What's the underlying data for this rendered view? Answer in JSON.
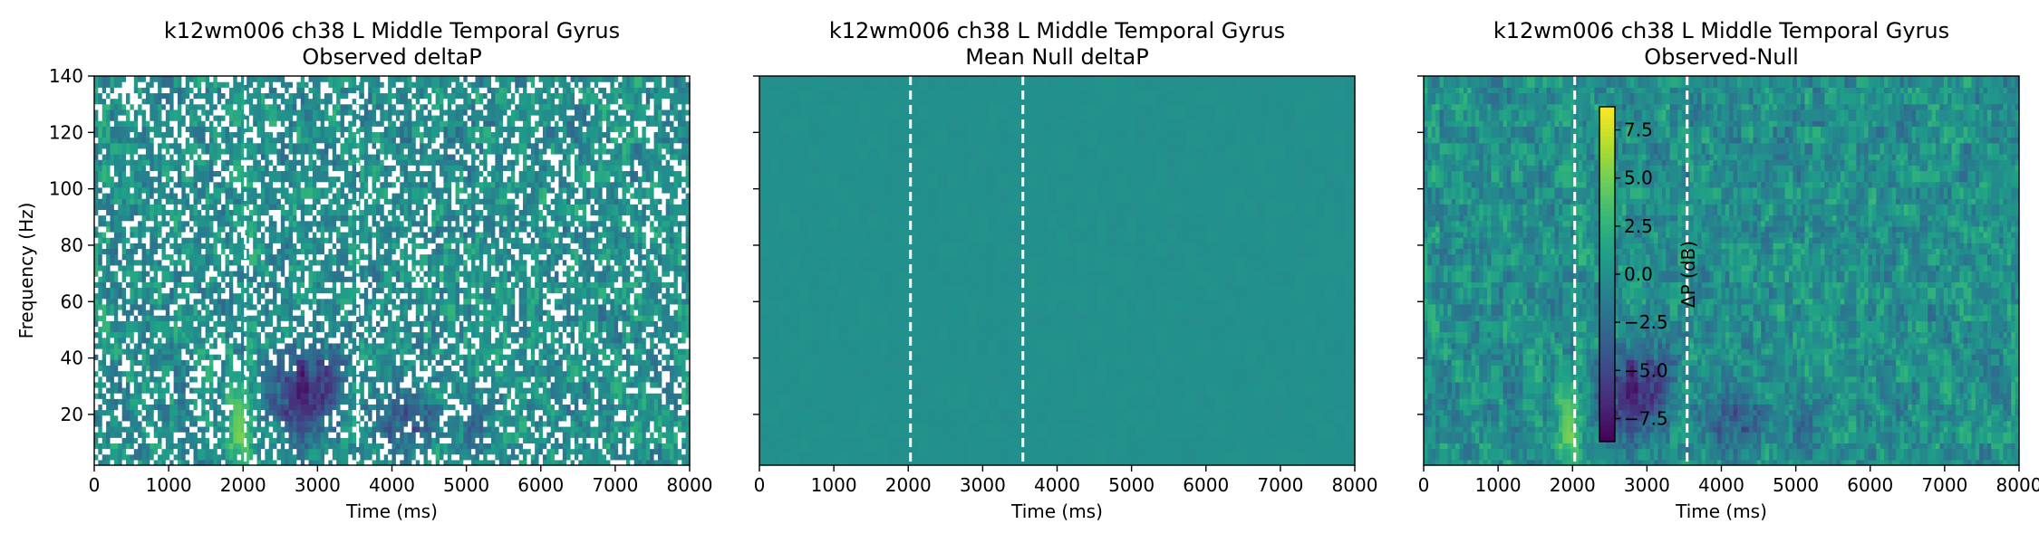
{
  "chart_data": [
    {
      "type": "heatmap",
      "title": "k12wm006 ch38 L Middle Temporal Gyrus",
      "subtitle": "Observed deltaP",
      "xlabel": "Time (ms)",
      "ylabel": "Frequency (Hz)",
      "xlim": [
        0,
        8000
      ],
      "ylim": [
        2,
        140
      ],
      "xticks": [
        0,
        1000,
        2000,
        3000,
        4000,
        5000,
        6000,
        7000,
        8000
      ],
      "yticks": [
        20,
        40,
        60,
        80,
        100,
        120,
        140
      ],
      "event_lines_ms": [
        2030,
        3540
      ],
      "colormap": "viridis",
      "masked_nonsignificant": true
    },
    {
      "type": "heatmap",
      "title": "k12wm006 ch38 L Middle Temporal Gyrus",
      "subtitle": "Mean Null deltaP",
      "xlabel": "Time (ms)",
      "ylabel": "",
      "xlim": [
        0,
        8000
      ],
      "ylim": [
        2,
        140
      ],
      "xticks": [
        0,
        1000,
        2000,
        3000,
        4000,
        5000,
        6000,
        7000,
        8000
      ],
      "yticks": [
        20,
        40,
        60,
        80,
        100,
        120,
        140
      ],
      "event_lines_ms": [
        2030,
        3540
      ],
      "colormap": "viridis",
      "uniform_value_db": 0.0
    },
    {
      "type": "heatmap",
      "title": "k12wm006 ch38 L Middle Temporal Gyrus",
      "subtitle": "Observed-Null",
      "xlabel": "Time (ms)",
      "ylabel": "",
      "xlim": [
        0,
        8000
      ],
      "ylim": [
        2,
        140
      ],
      "xticks": [
        0,
        1000,
        2000,
        3000,
        4000,
        5000,
        6000,
        7000,
        8000
      ],
      "yticks": [
        20,
        40,
        60,
        80,
        100,
        120,
        140
      ],
      "event_lines_ms": [
        2030,
        3540
      ],
      "colormap": "viridis",
      "colorbar": {
        "label": "ΔP (dB)",
        "vmin": -8.7,
        "vmax": 8.7,
        "ticks": [
          -7.5,
          -5.0,
          -2.5,
          0.0,
          2.5,
          5.0,
          7.5
        ],
        "tick_labels": [
          "−7.5",
          "−5.0",
          "−2.5",
          "0.0",
          "2.5",
          "5.0",
          "7.5"
        ]
      }
    }
  ]
}
